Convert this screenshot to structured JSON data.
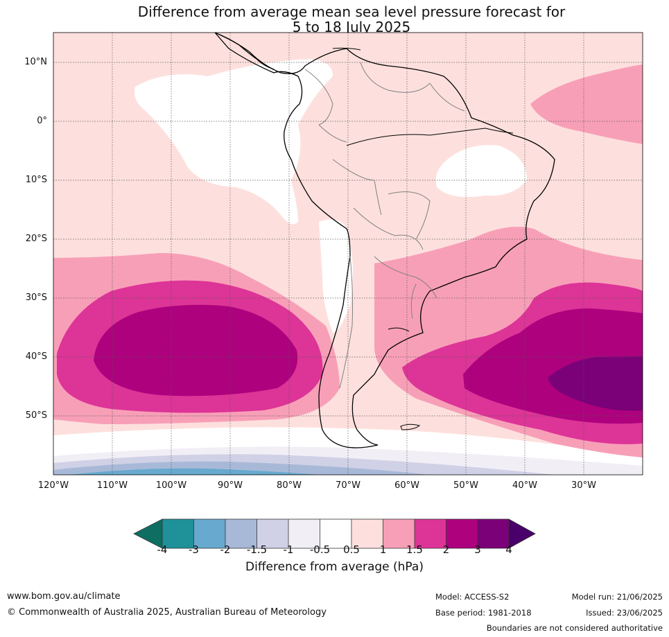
{
  "title": {
    "line1": "Difference from average mean sea level pressure forecast for",
    "line2": "5 to 18 July 2025"
  },
  "axes": {
    "lat_labels": [
      "10°N",
      "0°",
      "10°S",
      "20°S",
      "30°S",
      "40°S",
      "50°S"
    ],
    "lat_values": [
      10,
      0,
      -10,
      -20,
      -30,
      -40,
      -50
    ],
    "lon_labels": [
      "120°W",
      "110°W",
      "100°W",
      "90°W",
      "80°W",
      "70°W",
      "60°W",
      "50°W",
      "40°W",
      "30°W"
    ],
    "lon_values": [
      -120,
      -110,
      -100,
      -90,
      -80,
      -70,
      -60,
      -50,
      -40,
      -30
    ],
    "lon_range": [
      -120,
      -20
    ],
    "lat_range": [
      -60,
      15
    ],
    "grid": "dotted"
  },
  "legend": {
    "title": "Difference from average (hPa)",
    "ticks": [
      "-4",
      "-3",
      "-2",
      "-1.5",
      "-1",
      "-0.5",
      "0.5",
      "1",
      "1.5",
      "2",
      "3",
      "4"
    ],
    "colors": [
      "#0e6e62",
      "#1f9198",
      "#67a9cf",
      "#a8b9d8",
      "#d0d1e6",
      "#f1eef6",
      "#ffffff",
      "#fde0dd",
      "#f89fb8",
      "#dd3497",
      "#ae017e",
      "#7a0177",
      "#49006a"
    ]
  },
  "colors": {
    "ocean_default": "#fde0dd",
    "white_band": "#ffffff",
    "pink_15": "#f89fb8",
    "magenta_2": "#dd3497",
    "purple_3": "#ae017e",
    "deep_4": "#7a0177",
    "coast": "#000000",
    "border": "#808080"
  },
  "footer": {
    "website": "www.bom.gov.au/climate",
    "copyright": "© Commonwealth of Australia 2025, Australian Bureau of Meteorology",
    "model": "Model: ACCESS-S2",
    "base_period": "Base period: 1981-2018",
    "model_run": "Model run: 21/06/2025",
    "issued": "Issued: 23/06/2025",
    "disclaimer": "Boundaries are not considered authoritative"
  }
}
